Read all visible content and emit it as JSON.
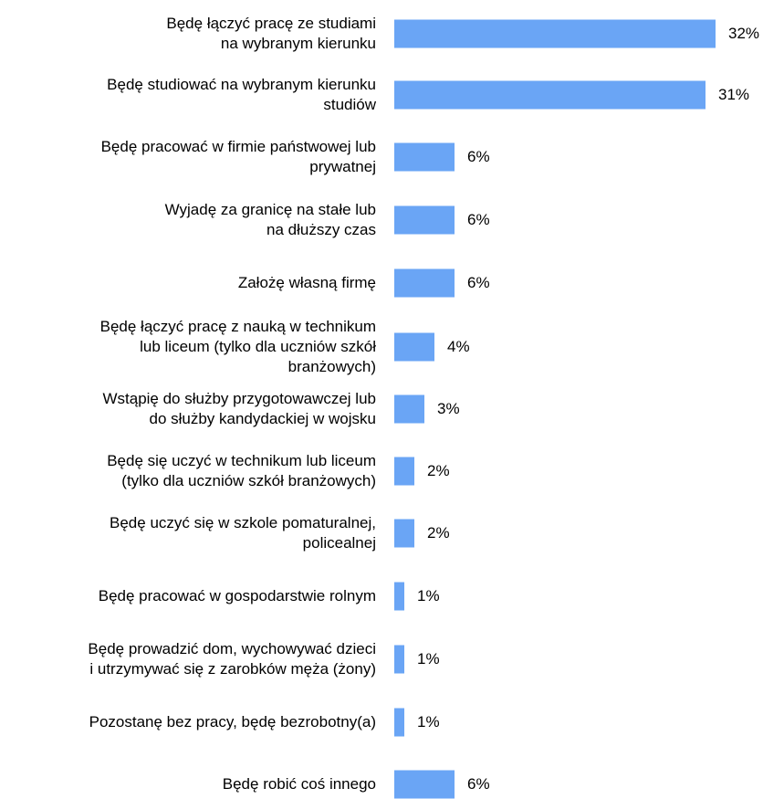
{
  "chart_data": {
    "type": "bar",
    "orientation": "horizontal",
    "bar_color": "#6aa5f5",
    "value_suffix": "%",
    "categories": [
      [
        "Będę łączyć pracę ze studiami",
        "na wybranym kierunku"
      ],
      [
        "Będę studiować na wybranym kierunku",
        "studiów"
      ],
      [
        "Będę pracować w firmie państwowej lub",
        "prywatnej"
      ],
      [
        "Wyjadę za granicę na stałe lub",
        "na dłuższy czas"
      ],
      [
        "Założę własną firmę"
      ],
      [
        "Będę łączyć pracę z nauką w technikum",
        "lub liceum (tylko dla uczniów szkół",
        "branżowych)"
      ],
      [
        "Wstąpię do służby przygotowawczej lub",
        "do służby kandydackiej w wojsku"
      ],
      [
        "Będę się uczyć w technikum lub liceum",
        "(tylko dla uczniów szkół branżowych)"
      ],
      [
        "Będę uczyć się w szkole pomaturalnej,",
        "policealnej"
      ],
      [
        "Będę pracować w gospodarstwie rolnym"
      ],
      [
        "Będę prowadzić dom, wychowywać dzieci",
        "i utrzymywać się z zarobków męża (żony)"
      ],
      [
        "Pozostanę bez pracy, będę bezrobotny(a)"
      ],
      [
        "Będę robić coś innego"
      ]
    ],
    "values": [
      32,
      31,
      6,
      6,
      6,
      4,
      3,
      2,
      2,
      1,
      1,
      1,
      6
    ],
    "xlim": [
      0,
      32
    ],
    "grid": false,
    "legend": "none"
  }
}
